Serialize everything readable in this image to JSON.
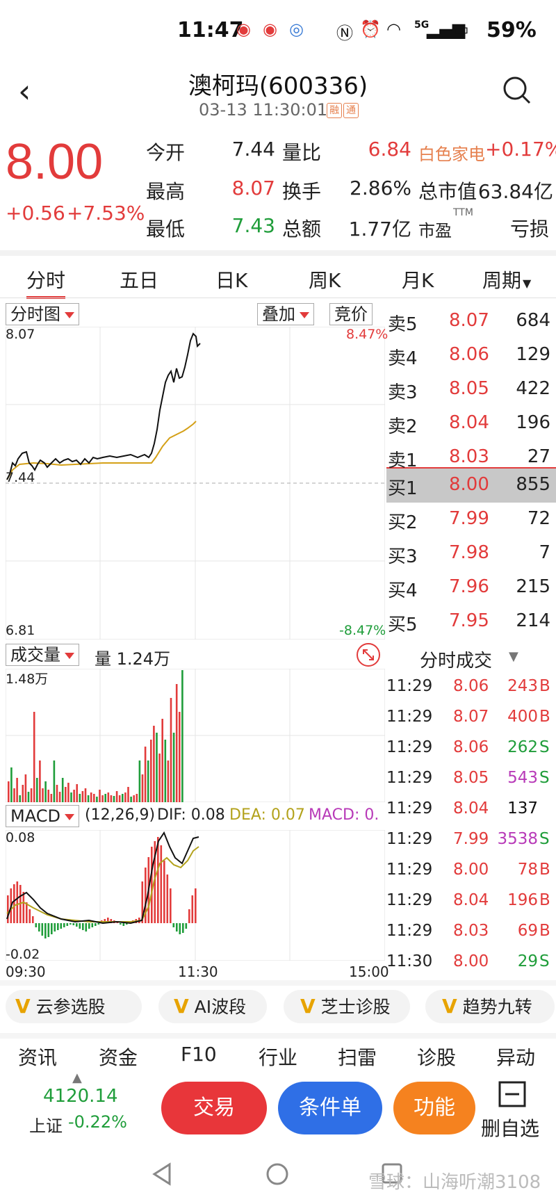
{
  "status": {
    "time": "11:47",
    "battery": "59%",
    "network": "5G"
  },
  "header": {
    "title": "澳柯玛(600336)",
    "timestamp": "03-13 11:30:01",
    "tag1": "融",
    "tag2": "通"
  },
  "quote": {
    "price": "8.00",
    "change": "+0.56",
    "change_pct": "+7.53%",
    "open_label": "今开",
    "open": "7.44",
    "high_label": "最高",
    "high": "8.07",
    "low_label": "最低",
    "low": "7.43",
    "vol_ratio_label": "量比",
    "vol_ratio": "6.84",
    "turnover_label": "换手",
    "turnover": "2.86%",
    "amount_label": "总额",
    "amount": "1.77亿",
    "sector": "白色家电",
    "sector_change": "+0.17%",
    "mktcap_label": "总市值",
    "mktcap": "63.84亿",
    "pe_label": "市盈",
    "pe_sup": "TTM",
    "pe": "亏损"
  },
  "tabs": [
    "分时",
    "五日",
    "日K",
    "周K",
    "月K",
    "周期"
  ],
  "chart_toolbar": {
    "chart_type": "分时图",
    "overlay": "叠加",
    "auction": "竞价"
  },
  "intraday": {
    "y_max": "8.07",
    "y_mid": "7.44",
    "y_min": "6.81",
    "pct_max": "8.47%",
    "pct_min": "-8.47%"
  },
  "volume_panel": {
    "label": "成交量",
    "current_label": "量 1.24万",
    "y_max": "1.48万"
  },
  "macd_panel": {
    "label": "MACD",
    "params": "(12,26,9)",
    "dif": "DIF: 0.08",
    "dea": "DEA: 0.07",
    "macd": "MACD: 0.",
    "y_max": "0.08",
    "y_min": "-0.02",
    "x_start": "09:30",
    "x_mid": "11:30",
    "x_end": "15:00"
  },
  "order_book": {
    "asks": [
      {
        "label": "卖5",
        "price": "8.07",
        "vol": "684"
      },
      {
        "label": "卖4",
        "price": "8.06",
        "vol": "129"
      },
      {
        "label": "卖3",
        "price": "8.05",
        "vol": "422"
      },
      {
        "label": "卖2",
        "price": "8.04",
        "vol": "196"
      },
      {
        "label": "卖1",
        "price": "8.03",
        "vol": "27"
      }
    ],
    "bids": [
      {
        "label": "买1",
        "price": "8.00",
        "vol": "855"
      },
      {
        "label": "买2",
        "price": "7.99",
        "vol": "72"
      },
      {
        "label": "买3",
        "price": "7.98",
        "vol": "7"
      },
      {
        "label": "买4",
        "price": "7.96",
        "vol": "215"
      },
      {
        "label": "买5",
        "price": "7.95",
        "vol": "214"
      }
    ]
  },
  "ticks_title": "分时成交",
  "ticks": [
    {
      "time": "11:29",
      "price": "8.06",
      "vol": "243",
      "side": "B"
    },
    {
      "time": "11:29",
      "price": "8.07",
      "vol": "400",
      "side": "B"
    },
    {
      "time": "11:29",
      "price": "8.06",
      "vol": "262",
      "side": "S"
    },
    {
      "time": "11:29",
      "price": "8.05",
      "vol": "543",
      "side": "S"
    },
    {
      "time": "11:29",
      "price": "8.04",
      "vol": "137",
      "side": ""
    },
    {
      "time": "11:29",
      "price": "7.99",
      "vol": "3538",
      "side": "S"
    },
    {
      "time": "11:29",
      "price": "8.00",
      "vol": "78",
      "side": "B"
    },
    {
      "time": "11:29",
      "price": "8.04",
      "vol": "196",
      "side": "B"
    },
    {
      "time": "11:29",
      "price": "8.03",
      "vol": "69",
      "side": "B"
    },
    {
      "time": "11:30",
      "price": "8.00",
      "vol": "29",
      "side": "S"
    }
  ],
  "pills": [
    "云参选股",
    "AI波段",
    "芝士诊股",
    "趋势九转"
  ],
  "nav": [
    "资讯",
    "资金",
    "F10",
    "行业",
    "扫雷",
    "诊股",
    "异动"
  ],
  "index": {
    "value": "4120.14",
    "name": "上证",
    "change": "-0.22%"
  },
  "actions": {
    "trade": "交易",
    "condition": "条件单",
    "function": "功能",
    "remove": "删自选"
  },
  "watermark": "雪球：山海听潮3108",
  "colors": {
    "up": "#e23b3b",
    "down": "#1f9d3a",
    "price_line": "#111111",
    "avg_line": "#d4a017",
    "trade_btn": "#e8363a",
    "condition_btn": "#2f6fe6",
    "function_btn": "#f5821f"
  }
}
